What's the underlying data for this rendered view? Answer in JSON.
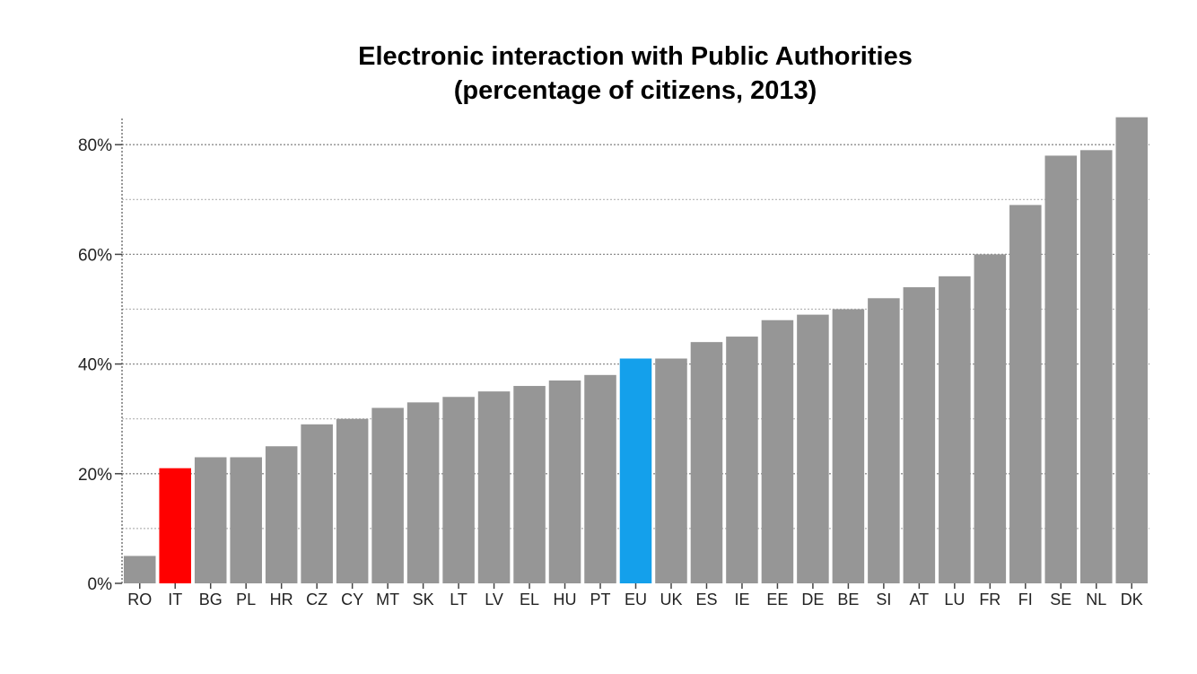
{
  "chart_data": {
    "type": "bar",
    "title": "Electronic interaction with Public Authorities",
    "subtitle": "(percentage of citizens, 2013)",
    "xlabel": "",
    "ylabel": "",
    "ylim": [
      0,
      85
    ],
    "y_ticks": [
      {
        "value": 0,
        "label": "0%"
      },
      {
        "value": 20,
        "label": "20%"
      },
      {
        "value": 40,
        "label": "40%"
      },
      {
        "value": 60,
        "label": "60%"
      },
      {
        "value": 80,
        "label": "80%"
      }
    ],
    "y_minor_gridlines": [
      10,
      30,
      50,
      70
    ],
    "grid": "horizontal dotted",
    "legend": "none",
    "colors": {
      "default": "#969696",
      "highlight_IT": "#ff0000",
      "highlight_EU": "#14a0eb"
    },
    "categories": [
      "RO",
      "IT",
      "BG",
      "PL",
      "HR",
      "CZ",
      "CY",
      "MT",
      "SK",
      "LT",
      "LV",
      "EL",
      "HU",
      "PT",
      "EU",
      "UK",
      "ES",
      "IE",
      "EE",
      "DE",
      "BE",
      "SI",
      "AT",
      "LU",
      "FR",
      "FI",
      "SE",
      "NL",
      "DK"
    ],
    "values": [
      5,
      21,
      23,
      23,
      25,
      29,
      30,
      32,
      33,
      34,
      35,
      36,
      37,
      38,
      41,
      41,
      44,
      45,
      48,
      49,
      50,
      52,
      54,
      56,
      60,
      69,
      78,
      79,
      85
    ],
    "bar_colors": [
      "#969696",
      "#ff0000",
      "#969696",
      "#969696",
      "#969696",
      "#969696",
      "#969696",
      "#969696",
      "#969696",
      "#969696",
      "#969696",
      "#969696",
      "#969696",
      "#969696",
      "#14a0eb",
      "#969696",
      "#969696",
      "#969696",
      "#969696",
      "#969696",
      "#969696",
      "#969696",
      "#969696",
      "#969696",
      "#969696",
      "#969696",
      "#969696",
      "#969696",
      "#969696"
    ]
  }
}
